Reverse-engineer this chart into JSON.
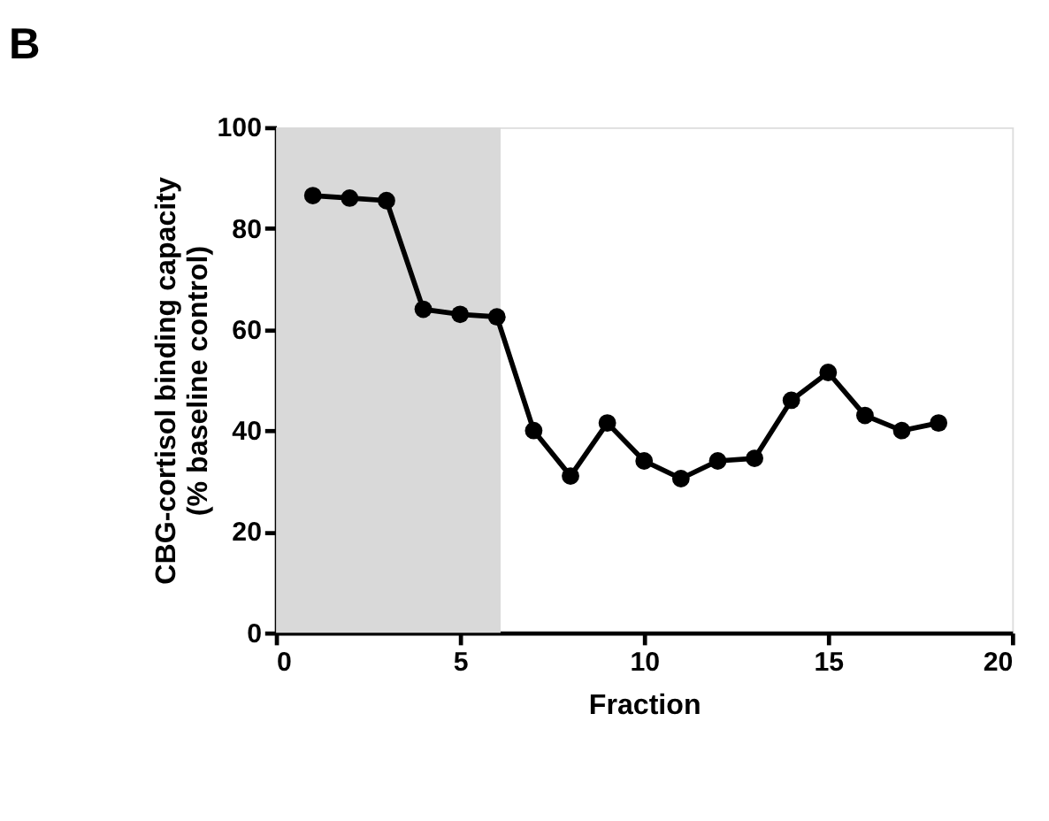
{
  "chart_data": {
    "type": "line",
    "title": "B",
    "xlabel": "Fraction",
    "ylabel": "CBG-cortisol binding capacity\n(% baseline control)",
    "x": [
      1,
      2,
      3,
      4,
      5,
      6,
      7,
      8,
      9,
      10,
      11,
      12,
      13,
      14,
      15,
      16,
      17,
      18
    ],
    "series": [
      {
        "color": "#000000",
        "values": [
          86.5,
          86,
          85.5,
          64,
          63,
          62.5,
          40,
          31,
          41.5,
          34,
          30.5,
          34,
          34.5,
          46,
          51.5,
          43,
          40,
          41.5
        ]
      }
    ],
    "xlim": [
      0,
      20
    ],
    "xticks": [
      0,
      5,
      10,
      15,
      20
    ],
    "ylim": [
      0,
      100
    ],
    "yticks": [
      0,
      20,
      40,
      60,
      80,
      100
    ],
    "bands": [
      {
        "axis": "x",
        "from": 0,
        "to": 6.1,
        "color": "#d9d9d9"
      }
    ],
    "marker": "circle",
    "line_style": "solid"
  }
}
